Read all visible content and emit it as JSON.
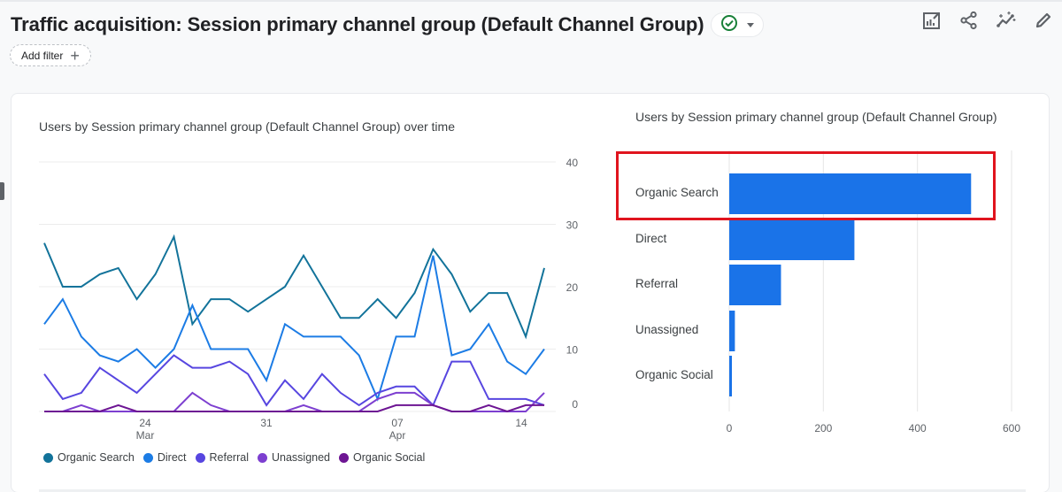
{
  "header": {
    "title": "Traffic acquisition: Session primary channel group (Default Channel Group)",
    "status_icon": "check-circle-icon",
    "status_color": "#188038",
    "add_filter_label": "Add filter",
    "toolbar_icons": [
      "customize-report-icon",
      "share-icon",
      "insights-icon",
      "edit-icon"
    ]
  },
  "line_chart": {
    "title": "Users by Session primary channel group (Default Channel Group) over time"
  },
  "bar_chart": {
    "title": "Users by Session primary channel group (Default Channel Group)"
  },
  "colors": {
    "organic_search": "#12739a",
    "direct": "#1c7ce5",
    "referral": "#5746e0",
    "unassigned": "#7d3fd0",
    "organic_social": "#6d1593",
    "bar": "#1a73e8",
    "highlight": "#e0141e"
  },
  "chart_data": [
    {
      "type": "line",
      "title": "Users by Session primary channel group (Default Channel Group) over time",
      "xlabel": "",
      "ylabel": "",
      "ylim": [
        0,
        40
      ],
      "y_ticks": [
        "0",
        "10",
        "20",
        "30",
        "40"
      ],
      "y_axis_position": "right",
      "x_tick_labels": [
        {
          "day": "24",
          "month": "Mar"
        },
        {
          "day": "31",
          "month": ""
        },
        {
          "day": "07",
          "month": "Apr"
        },
        {
          "day": "14",
          "month": ""
        }
      ],
      "grid": true,
      "legend_position": "bottom",
      "series": [
        {
          "name": "Organic Search",
          "color": "#12739a",
          "values": [
            27,
            20,
            20,
            22,
            23,
            18,
            22,
            28,
            14,
            18,
            18,
            16,
            18,
            20,
            25,
            20,
            15,
            15,
            18,
            15,
            19,
            26,
            22,
            16,
            19,
            19,
            12,
            23
          ]
        },
        {
          "name": "Direct",
          "color": "#1c7ce5",
          "values": [
            14,
            18,
            12,
            9,
            8,
            10,
            7,
            10,
            17,
            10,
            10,
            10,
            5,
            14,
            12,
            12,
            12,
            9,
            2,
            12,
            12,
            25,
            9,
            10,
            14,
            8,
            6,
            10
          ]
        },
        {
          "name": "Referral",
          "color": "#5746e0",
          "values": [
            6,
            2,
            3,
            7,
            5,
            3,
            6,
            9,
            7,
            7,
            8,
            6,
            1,
            5,
            2,
            6,
            3,
            1,
            3,
            4,
            4,
            1,
            8,
            8,
            2,
            2,
            2,
            1
          ]
        },
        {
          "name": "Unassigned",
          "color": "#7d3fd0",
          "values": [
            0,
            0,
            1,
            0,
            0,
            0,
            0,
            0,
            3,
            1,
            0,
            0,
            0,
            0,
            1,
            0,
            0,
            0,
            2,
            3,
            3,
            1,
            0,
            0,
            0,
            0,
            0,
            3
          ]
        },
        {
          "name": "Organic Social",
          "color": "#6d1593",
          "values": [
            0,
            0,
            0,
            0,
            1,
            0,
            0,
            0,
            0,
            0,
            0,
            0,
            0,
            0,
            0,
            0,
            0,
            0,
            0,
            1,
            1,
            1,
            0,
            0,
            1,
            0,
            1,
            1
          ]
        }
      ]
    },
    {
      "type": "bar",
      "orientation": "horizontal",
      "title": "Users by Session primary channel group (Default Channel Group)",
      "categories": [
        "Organic Search",
        "Direct",
        "Referral",
        "Unassigned",
        "Organic Social"
      ],
      "values": [
        514,
        266,
        110,
        12,
        4
      ],
      "xlim": [
        0,
        600
      ],
      "x_ticks": [
        "0",
        "200",
        "400",
        "600"
      ],
      "grid": true,
      "highlighted_category": "Organic Search"
    }
  ]
}
